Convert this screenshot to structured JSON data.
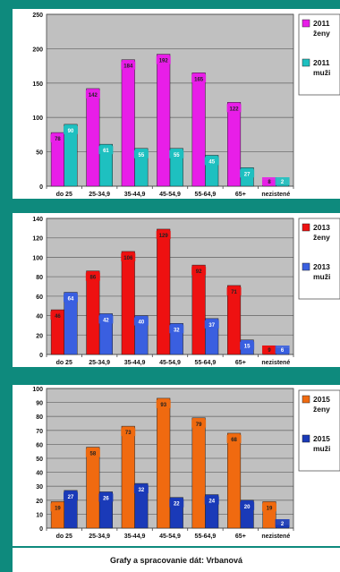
{
  "footer": {
    "credit": "Grafy a spracovanie dát: Vrbanová"
  },
  "chart_data": [
    {
      "type": "bar",
      "categories": [
        "do 25",
        "25-34,9",
        "35-44,9",
        "45-54,9",
        "55-64,9",
        "65+",
        "nezistené"
      ],
      "series": [
        {
          "name": "2011\nženy",
          "values": [
            78,
            142,
            184,
            192,
            165,
            122,
            8
          ],
          "color": "#e81ee8"
        },
        {
          "name": "2011\nmuži",
          "values": [
            90,
            61,
            55,
            55,
            45,
            27,
            2
          ],
          "color": "#1ec0c0"
        }
      ],
      "ylim": [
        0,
        250
      ],
      "yticks": [
        0,
        50,
        100,
        150,
        200,
        250
      ],
      "plot_background": "#c0c0c0",
      "grid": true,
      "legend": "right"
    },
    {
      "type": "bar",
      "categories": [
        "do 25",
        "25-34,9",
        "35-44,9",
        "45-54,9",
        "55-64,9",
        "65+",
        "nezistené"
      ],
      "series": [
        {
          "name": "2013\nženy",
          "values": [
            46,
            86,
            106,
            129,
            92,
            71,
            9
          ],
          "color": "#ee1111"
        },
        {
          "name": "2013\nmuži",
          "values": [
            64,
            42,
            40,
            32,
            37,
            15,
            6
          ],
          "color": "#3a5fe0"
        }
      ],
      "ylim": [
        0,
        140
      ],
      "yticks": [
        0,
        20,
        40,
        60,
        80,
        100,
        120,
        140
      ],
      "plot_background": "#c0c0c0",
      "grid": true,
      "legend": "right"
    },
    {
      "type": "bar",
      "categories": [
        "do 25",
        "25-34,9",
        "35-44,9",
        "45-54,9",
        "55-64,9",
        "65+",
        "nezistené"
      ],
      "series": [
        {
          "name": "2015\nženy",
          "values": [
            19,
            58,
            73,
            93,
            79,
            68,
            19
          ],
          "color": "#f06a10"
        },
        {
          "name": "2015\nmuži",
          "values": [
            27,
            26,
            32,
            22,
            24,
            20,
            2
          ],
          "color": "#1a3ab8"
        }
      ],
      "ylim": [
        0,
        100
      ],
      "yticks": [
        0,
        10,
        20,
        30,
        40,
        50,
        60,
        70,
        80,
        90,
        100
      ],
      "plot_background": "#c0c0c0",
      "grid": true,
      "legend": "right"
    }
  ]
}
